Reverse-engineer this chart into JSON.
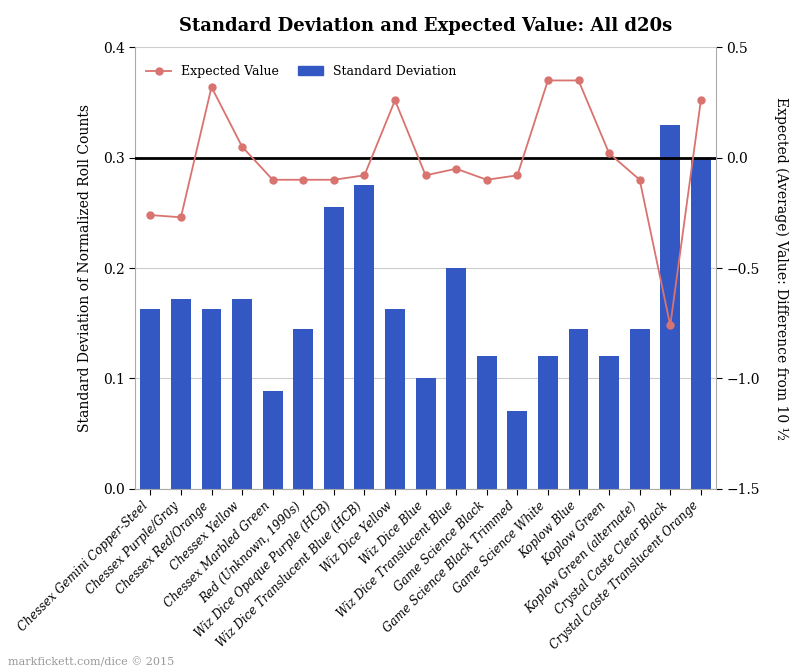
{
  "categories": [
    "Chessex Gemini Copper-Steel",
    "Chessex Purple/Gray",
    "Chessex Red/Orange",
    "Chessex Yellow",
    "Chessex Marbled Green",
    "Red (Unknown, 1990s)",
    "Wiz Dice Opaque Purple (HCB)",
    "Wiz Dice Translucent Blue (HCB)",
    "Wiz Dice Yellow",
    "Wiz Dice Blue",
    "Wiz Dice Translucent Blue",
    "Game Science Black",
    "Game Science Black Trimmed",
    "Game Science White",
    "Koplow Blue",
    "Koplow Green",
    "Koplow Green (alternate)",
    "Crystal Caste Clear Black",
    "Crystal Caste Translucent Orange"
  ],
  "std_dev": [
    0.163,
    0.172,
    0.163,
    0.172,
    0.089,
    0.145,
    0.255,
    0.275,
    0.163,
    0.1,
    0.2,
    0.12,
    0.07,
    0.12,
    0.145,
    0.12,
    0.145,
    0.33,
    0.3
  ],
  "expected_value_right": [
    -0.26,
    -0.27,
    0.32,
    0.05,
    -0.1,
    -0.1,
    -0.1,
    -0.08,
    0.26,
    -0.08,
    -0.05,
    -0.1,
    -0.08,
    0.35,
    0.35,
    0.02,
    -0.1,
    -0.76,
    0.26
  ],
  "bar_color": "#3358c4",
  "line_color": "#d9736f",
  "marker_color": "#d9736f",
  "title": "Standard Deviation and Expected Value: All d20s",
  "ylabel_left": "Standard Deviation of Normalized Roll Counts",
  "ylabel_right": "Expected (Average) Value: Difference from 10 ½",
  "ylim_left": [
    0,
    0.4
  ],
  "ylim_right": [
    -1.5,
    0.5
  ],
  "yticks_left": [
    0,
    0.1,
    0.2,
    0.3,
    0.4
  ],
  "yticks_right": [
    0.5,
    0,
    -0.5,
    -1.0,
    -1.5
  ],
  "hline_y_left": 0.3,
  "background_color": "#ffffff",
  "watermark": "markfickett.com/dice © 2015",
  "grid_color": "#cccccc",
  "spine_color": "#aaaaaa"
}
